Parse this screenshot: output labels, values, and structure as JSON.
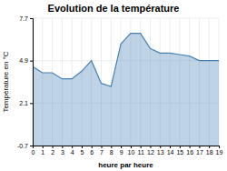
{
  "chart_data": {
    "type": "area",
    "title": "Evolution de la température",
    "xlabel": "heure par heure",
    "ylabel": "Température en °C",
    "x": [
      0,
      1,
      2,
      3,
      4,
      5,
      6,
      7,
      8,
      9,
      10,
      11,
      12,
      13,
      14,
      15,
      16,
      17,
      18,
      19
    ],
    "values": [
      4.5,
      4.1,
      4.1,
      3.7,
      3.7,
      4.2,
      4.9,
      3.4,
      3.2,
      6.0,
      6.7,
      6.7,
      5.7,
      5.4,
      5.4,
      5.3,
      5.2,
      4.9,
      4.9,
      4.9
    ],
    "xlim": [
      0,
      19
    ],
    "xticks": [
      0,
      1,
      2,
      3,
      4,
      5,
      6,
      7,
      8,
      9,
      10,
      11,
      12,
      13,
      14,
      15,
      16,
      17,
      18,
      19
    ],
    "ylim": [
      -0.7,
      7.7
    ],
    "yticks": [
      -0.7,
      2.1,
      4.9,
      7.7
    ],
    "grid": true
  }
}
